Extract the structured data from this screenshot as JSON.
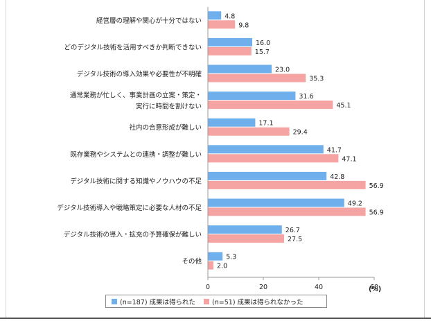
{
  "chart_data": {
    "type": "bar",
    "orientation": "horizontal",
    "categories": [
      "経営層の理解や関心が十分ではない",
      "どのデジタル技術を活用すべきか判断できない",
      "デジタル技術の導入効果や必要性が不明確",
      [
        "通常業務が忙しく、事業計画の立案・策定・",
        "実行に時間を割けない"
      ],
      "社内の合意形成が難しい",
      "既存業務やシステムとの連携・調整が難しい",
      "デジタル技術に関する知識やノウハウの不足",
      "デジタル技術導入や戦略策定に必要な人材の不足",
      "デジタル技術の導入・拡充の予算確保が難しい",
      "その他"
    ],
    "series": [
      {
        "name": "(n=187) 成果は得られた",
        "color": "#6fb0ec",
        "values": [
          4.8,
          16.0,
          23.0,
          31.6,
          17.1,
          41.7,
          42.8,
          49.2,
          26.7,
          5.3
        ]
      },
      {
        "name": "(n=51) 成果は得られなかった",
        "color": "#f6a3a3",
        "values": [
          9.8,
          15.7,
          35.3,
          45.1,
          29.4,
          47.1,
          56.9,
          56.9,
          27.5,
          2.0
        ]
      }
    ],
    "xlim": [
      0,
      60
    ],
    "xticks": [
      "0",
      "20",
      "40",
      "60"
    ],
    "unit_label": "(%)",
    "legend_placement": "bottom",
    "grid": false
  }
}
